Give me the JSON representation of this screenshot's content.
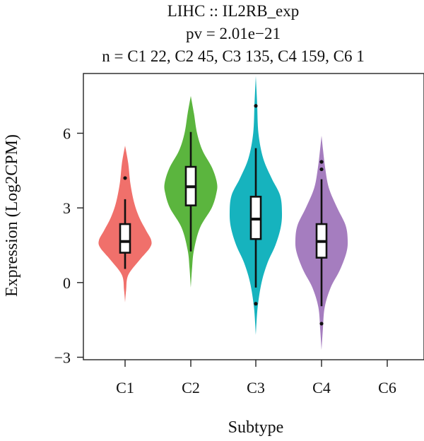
{
  "chart_data": {
    "type": "violin",
    "title_lines": [
      "LIHC :: IL2RB_exp",
      "pv = 2.01e−21",
      "n = C1 22, C2 45, C3 135, C4 159, C6 1"
    ],
    "xlabel": "Subtype",
    "ylabel": "Expression (Log2CPM)",
    "ylim": [
      -3.1,
      8.4
    ],
    "yticks": [
      -3,
      0,
      3,
      6
    ],
    "ytick_labels": [
      "−3",
      "0",
      "3",
      "6"
    ],
    "categories": [
      "C1",
      "C2",
      "C3",
      "C4",
      "C6"
    ],
    "grid": false,
    "legend": "none",
    "series": [
      {
        "category": "C1",
        "color": "#f0706b",
        "min": -0.8,
        "max": 5.5,
        "q1": 1.2,
        "median": 1.65,
        "q3": 2.35,
        "whisker_low": 0.55,
        "whisker_high": 3.35,
        "outliers": [
          4.2
        ],
        "density": [
          [
            -0.8,
            0.0
          ],
          [
            -0.3,
            0.04
          ],
          [
            0.3,
            0.12
          ],
          [
            0.9,
            0.55
          ],
          [
            1.4,
            0.95
          ],
          [
            1.7,
            1.0
          ],
          [
            2.1,
            0.8
          ],
          [
            2.6,
            0.55
          ],
          [
            3.2,
            0.35
          ],
          [
            4.0,
            0.2
          ],
          [
            4.8,
            0.12
          ],
          [
            5.5,
            0.0
          ]
        ]
      },
      {
        "category": "C2",
        "color": "#5bb53e",
        "min": -0.2,
        "max": 7.5,
        "q1": 3.1,
        "median": 3.85,
        "q3": 4.65,
        "whisker_low": 1.25,
        "whisker_high": 6.05,
        "outliers": [],
        "density": [
          [
            -0.2,
            0.0
          ],
          [
            0.6,
            0.05
          ],
          [
            1.3,
            0.12
          ],
          [
            2.2,
            0.35
          ],
          [
            3.0,
            0.8
          ],
          [
            3.6,
            0.98
          ],
          [
            4.0,
            1.0
          ],
          [
            4.6,
            0.82
          ],
          [
            5.3,
            0.45
          ],
          [
            6.0,
            0.24
          ],
          [
            6.8,
            0.12
          ],
          [
            7.5,
            0.0
          ]
        ]
      },
      {
        "category": "C3",
        "color": "#16b3be",
        "min": -2.1,
        "max": 8.3,
        "q1": 1.75,
        "median": 2.55,
        "q3": 3.45,
        "whisker_low": -0.2,
        "whisker_high": 5.4,
        "outliers": [
          7.1,
          -0.85
        ],
        "density": [
          [
            -2.1,
            0.0
          ],
          [
            -1.0,
            0.07
          ],
          [
            0.0,
            0.22
          ],
          [
            0.8,
            0.45
          ],
          [
            1.5,
            0.75
          ],
          [
            2.2,
            0.95
          ],
          [
            2.8,
            1.0
          ],
          [
            3.5,
            0.93
          ],
          [
            4.2,
            0.6
          ],
          [
            5.0,
            0.28
          ],
          [
            6.0,
            0.1
          ],
          [
            7.2,
            0.05
          ],
          [
            8.3,
            0.0
          ]
        ]
      },
      {
        "category": "C4",
        "color": "#a57dbf",
        "min": -2.7,
        "max": 5.9,
        "q1": 1.0,
        "median": 1.65,
        "q3": 2.35,
        "whisker_low": -0.95,
        "whisker_high": 4.15,
        "outliers": [
          4.85,
          4.55,
          -1.65
        ],
        "density": [
          [
            -2.7,
            0.0
          ],
          [
            -1.9,
            0.05
          ],
          [
            -1.0,
            0.12
          ],
          [
            -0.2,
            0.35
          ],
          [
            0.5,
            0.7
          ],
          [
            1.2,
            0.95
          ],
          [
            1.7,
            1.0
          ],
          [
            2.3,
            0.92
          ],
          [
            3.0,
            0.6
          ],
          [
            3.8,
            0.28
          ],
          [
            4.6,
            0.14
          ],
          [
            5.3,
            0.06
          ],
          [
            5.9,
            0.0
          ]
        ]
      },
      {
        "category": "C6",
        "color": "#e06bdc",
        "min": null,
        "max": null,
        "q1": null,
        "median": null,
        "q3": null,
        "whisker_low": null,
        "whisker_high": null,
        "outliers": [],
        "density": []
      }
    ]
  }
}
